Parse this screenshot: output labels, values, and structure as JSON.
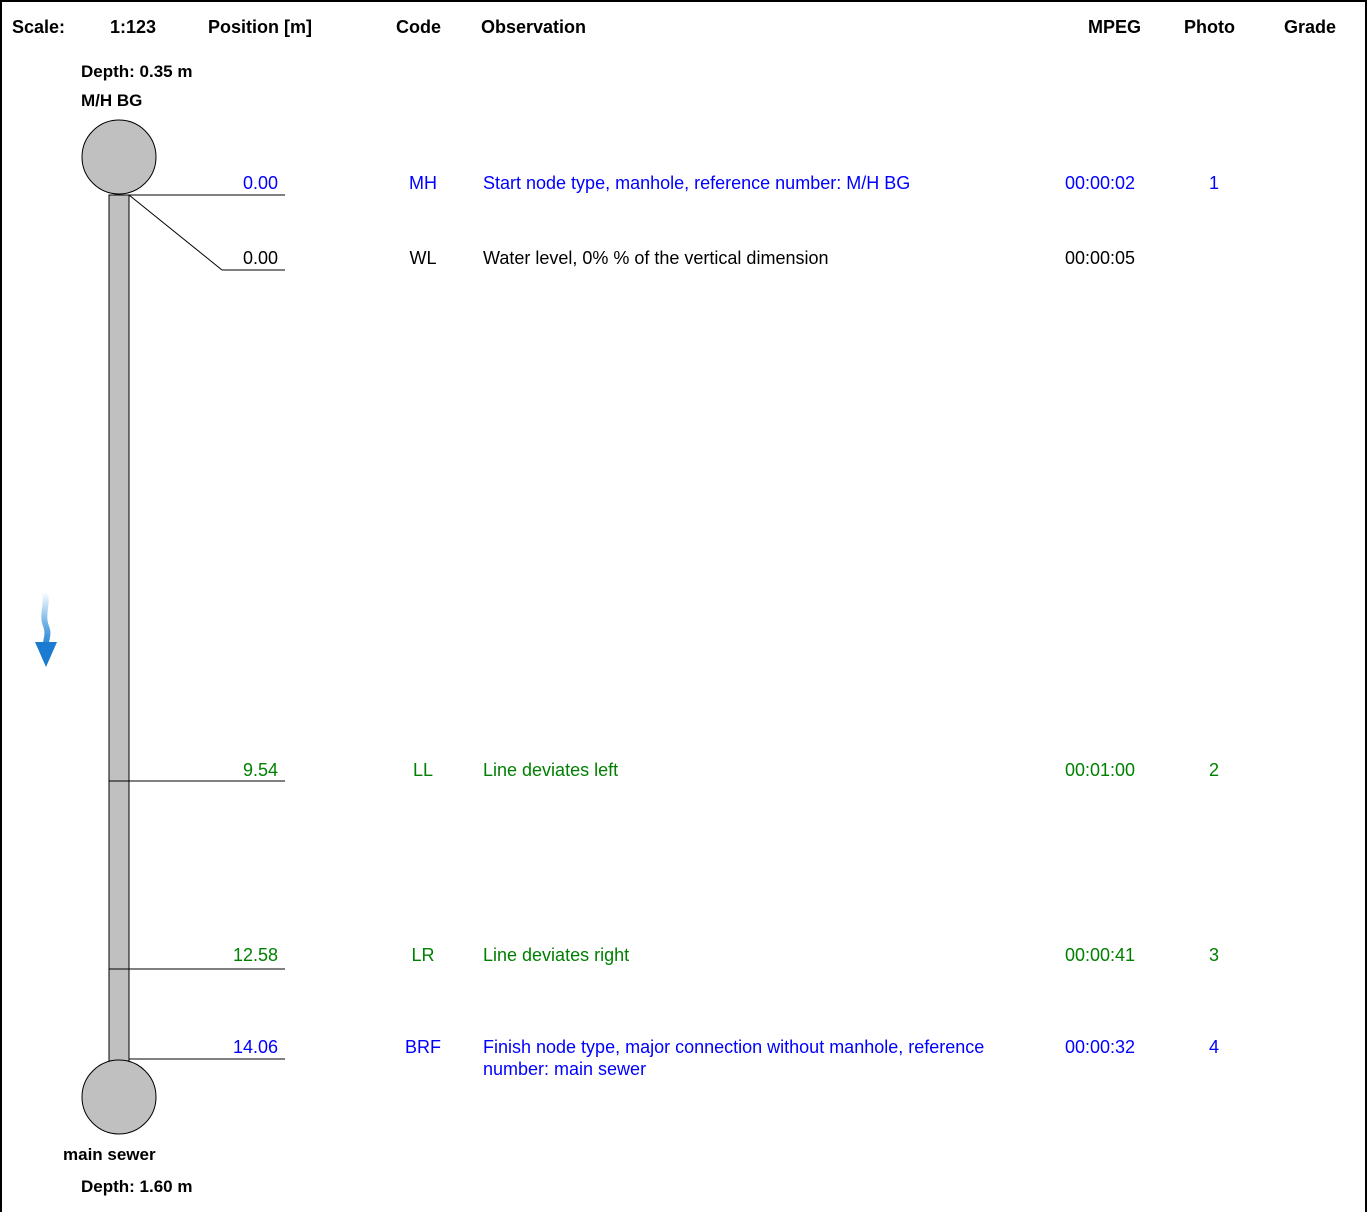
{
  "header": {
    "scale_label": "Scale:",
    "scale_value": "1:123",
    "position_label": "Position [m]",
    "code_label": "Code",
    "observation_label": "Observation",
    "mpeg_label": "MPEG",
    "photo_label": "Photo",
    "grade_label": "Grade"
  },
  "start_node": {
    "depth": "Depth: 0.35 m",
    "name": "M/H BG"
  },
  "end_node": {
    "name": "main sewer",
    "depth": "Depth: 1.60 m"
  },
  "flow_direction": "down",
  "colors": {
    "blue": "#0000ff",
    "green": "#008000",
    "black": "#000000",
    "pipe": "#c0c0c0",
    "arrow": "#1a7bd0"
  },
  "observations": [
    {
      "position": "0.00",
      "code": "MH",
      "observation": "Start node type, manhole, reference number: M/H BG",
      "mpeg": "00:00:02",
      "photo": "1",
      "grade": "",
      "color": "blue"
    },
    {
      "position": "0.00",
      "code": "WL",
      "observation": "Water level, 0% % of the vertical dimension",
      "mpeg": "00:00:05",
      "photo": "",
      "grade": "",
      "color": "black"
    },
    {
      "position": "9.54",
      "code": "LL",
      "observation": "Line deviates left",
      "mpeg": "00:01:00",
      "photo": "2",
      "grade": "",
      "color": "green"
    },
    {
      "position": "12.58",
      "code": "LR",
      "observation": "Line deviates right",
      "mpeg": "00:00:41",
      "photo": "3",
      "grade": "",
      "color": "green"
    },
    {
      "position": "14.06",
      "code": "BRF",
      "observation": "Finish node type, major connection without manhole, reference number: main sewer",
      "mpeg": "00:00:32",
      "photo": "4",
      "grade": "",
      "color": "blue"
    }
  ]
}
